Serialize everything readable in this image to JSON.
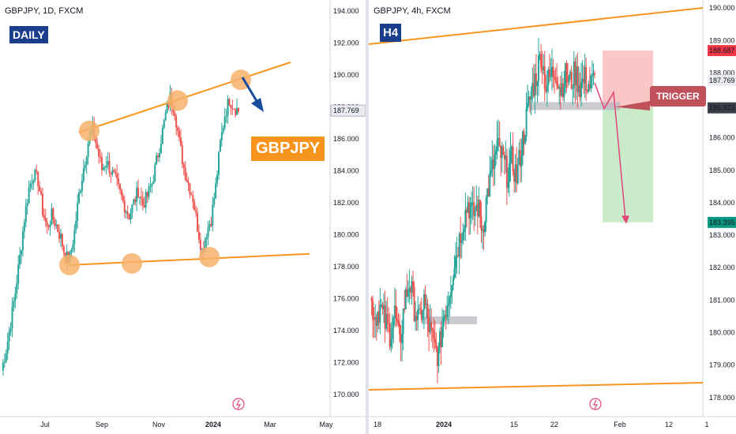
{
  "left": {
    "symbol": "GBPJPY, 1D, FXCM",
    "timeframe_badge": "DAILY",
    "ticker_label": "GBPJPY",
    "price_scale": [
      "194.000",
      "192.000",
      "190.000",
      "188.000",
      "186.000",
      "184.000",
      "182.000",
      "180.000",
      "178.000",
      "176.000",
      "174.000",
      "172.000",
      "170.000"
    ],
    "current_price": "187.769",
    "time_labels": [
      "Jul",
      "Sep",
      "Nov",
      "2024",
      "Mar",
      "May"
    ]
  },
  "right": {
    "symbol": "GBPJPY, 4h, FXCM",
    "timeframe_badge": "H4",
    "price_scale": [
      "190.000",
      "189.000",
      "188.000",
      "187.000",
      "186.000",
      "185.000",
      "184.000",
      "183.000",
      "182.000",
      "181.000",
      "180.000",
      "179.000",
      "178.000"
    ],
    "price_tags": {
      "stop": "188.687",
      "current": "187.769",
      "entry": "186.923",
      "target": "183.395"
    },
    "trigger_label": "TRIGGER",
    "time_labels": [
      "18",
      "2024",
      "15",
      "22",
      "Feb",
      "12",
      "1"
    ]
  },
  "colors": {
    "up": "#26a69a",
    "down": "#ef5350",
    "trend": "#f7941d",
    "badge": "#1a3e8c",
    "arrow": "#1a4a9c",
    "trade_arrow": "#e0457b",
    "stop_zone": "#f8b4b4",
    "target_zone": "#b7e4b7"
  },
  "chart_data": [
    {
      "type": "candlestick",
      "title": "GBPJPY, 1D, FXCM",
      "ylim": [
        169,
        194.5
      ],
      "x": [
        "Jul",
        "Sep",
        "Nov",
        "2024",
        "Mar",
        "May"
      ],
      "close_path": [
        171.5,
        172.8,
        174.5,
        176.4,
        178.6,
        181.0,
        182.9,
        183.8,
        183.4,
        181.5,
        180.4,
        181.2,
        180.6,
        179.8,
        178.6,
        178.5,
        180.2,
        182.5,
        184.2,
        185.8,
        186.6,
        185.4,
        184.1,
        184.6,
        184.0,
        183.4,
        182.6,
        181.8,
        181.2,
        182.0,
        182.8,
        181.9,
        182.4,
        183.2,
        184.6,
        186.0,
        187.5,
        188.6,
        187.8,
        185.8,
        184.2,
        183.2,
        182.3,
        180.5,
        179.0,
        180.2,
        181.0,
        183.0,
        185.7,
        187.5,
        188.5,
        188.0,
        187.77
      ],
      "annotations": {
        "upper_trendline": {
          "from": [
            "Aug",
            186.4
          ],
          "to": [
            "Apr",
            190.8
          ]
        },
        "lower_trendline": {
          "from": [
            "Jul",
            178.1
          ],
          "to": [
            "May",
            178.8
          ]
        },
        "touch_points_upper": [
          186.5,
          188.4,
          189.7
        ],
        "touch_points_lower": [
          178.1,
          178.2,
          178.6
        ]
      }
    },
    {
      "type": "candlestick",
      "title": "GBPJPY, 4h, FXCM",
      "ylim": [
        177.8,
        190.1
      ],
      "x": [
        "18",
        "2024",
        "15",
        "22",
        "Feb",
        "12",
        "1"
      ],
      "close_path": [
        181.0,
        180.5,
        180.8,
        180.3,
        180.0,
        180.6,
        179.6,
        180.9,
        181.6,
        180.8,
        180.3,
        181.0,
        180.2,
        179.6,
        179.3,
        180.5,
        181.1,
        182.0,
        182.7,
        183.4,
        184.0,
        183.6,
        183.9,
        183.2,
        184.3,
        185.0,
        185.7,
        185.4,
        184.9,
        185.3,
        184.8,
        185.7,
        186.6,
        187.4,
        187.9,
        188.6,
        187.6,
        187.9,
        188.1,
        187.5,
        187.9,
        187.7,
        188.0,
        187.6,
        187.8,
        187.6,
        187.77
      ],
      "trade_setup": {
        "stop": 188.687,
        "entry": 186.923,
        "target": 183.395,
        "current": 187.769
      },
      "annotations": {
        "support_zone_1": 180.4,
        "support_zone_2": 187.0
      }
    }
  ]
}
